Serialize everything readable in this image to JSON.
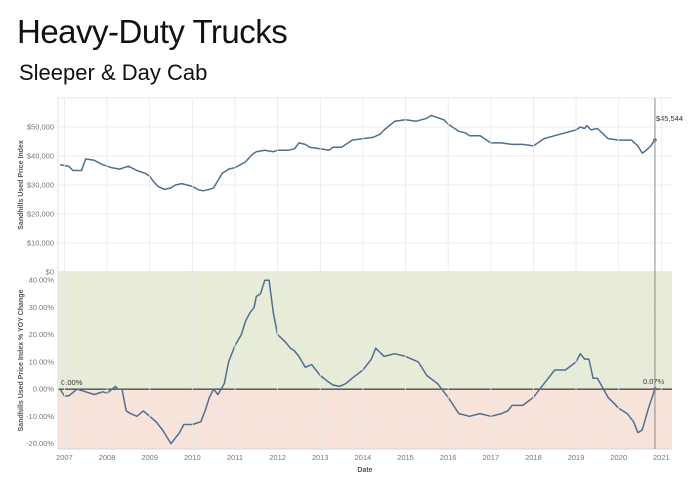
{
  "header": {
    "title": "Heavy-Duty Trucks",
    "subtitle": "Sleeper & Day Cab"
  },
  "colors": {
    "line": "#4e6f92",
    "positive_band": "#e7ecd9",
    "negative_band": "#f8e3db",
    "grid": "#e8e8e8",
    "zero_line": "#111111",
    "reference_line": "#888888"
  },
  "chart_data": [
    {
      "type": "line",
      "ylabel": "Sandhills Used Price Index",
      "xlabel": "",
      "ylim": [
        0,
        60000
      ],
      "yticks": [
        0,
        10000,
        20000,
        30000,
        40000,
        50000
      ],
      "ytick_labels": [
        "$0",
        "$10,000",
        "$20,000",
        "$30,000",
        "$40,000",
        "$50,000"
      ],
      "grid": true,
      "last_value_label": "$45,544",
      "x": [
        2006.9,
        2007.1,
        2007.2,
        2007.4,
        2007.5,
        2007.7,
        2007.9,
        2008.1,
        2008.3,
        2008.5,
        2008.7,
        2008.9,
        2009.0,
        2009.1,
        2009.2,
        2009.35,
        2009.5,
        2009.6,
        2009.75,
        2010.0,
        2010.15,
        2010.25,
        2010.4,
        2010.5,
        2010.6,
        2010.7,
        2010.85,
        2011.0,
        2011.25,
        2011.4,
        2011.5,
        2011.7,
        2011.9,
        2012.0,
        2012.25,
        2012.4,
        2012.5,
        2012.65,
        2012.75,
        2013.0,
        2013.2,
        2013.3,
        2013.5,
        2013.75,
        2014.0,
        2014.25,
        2014.4,
        2014.5,
        2014.75,
        2015.0,
        2015.25,
        2015.5,
        2015.6,
        2015.9,
        2016.0,
        2016.25,
        2016.4,
        2016.5,
        2016.75,
        2017.0,
        2017.25,
        2017.5,
        2017.75,
        2018.0,
        2018.25,
        2018.5,
        2018.75,
        2019.0,
        2019.1,
        2019.2,
        2019.25,
        2019.35,
        2019.5,
        2019.75,
        2020.0,
        2020.3,
        2020.45,
        2020.55,
        2020.65,
        2020.75,
        2020.85
      ],
      "y": [
        37000,
        36500,
        35000,
        35000,
        39000,
        38500,
        37000,
        36000,
        35500,
        36500,
        35000,
        34000,
        33000,
        31000,
        29500,
        28500,
        29000,
        30000,
        30500,
        29500,
        28300,
        28000,
        28500,
        29000,
        31500,
        34000,
        35500,
        36000,
        38000,
        40500,
        41500,
        42000,
        41500,
        42000,
        42000,
        42500,
        44500,
        44000,
        43000,
        42500,
        42000,
        43000,
        43000,
        45500,
        46000,
        46500,
        47500,
        49000,
        52000,
        52500,
        52000,
        53000,
        54000,
        52500,
        51000,
        48500,
        48000,
        47000,
        47000,
        44500,
        44500,
        44000,
        44000,
        43500,
        46000,
        47000,
        48000,
        49000,
        50000,
        49500,
        50500,
        49000,
        49500,
        46000,
        45500,
        45500,
        43500,
        41000,
        42000,
        43500,
        45544
      ]
    },
    {
      "type": "line",
      "ylabel": "Sandhills Used Price Index % YOY Change",
      "xlabel": "Date",
      "ylim": [
        -22,
        43
      ],
      "yticks": [
        -20,
        -10,
        0,
        10,
        20,
        30,
        40
      ],
      "ytick_labels": [
        "-20.00%",
        "-10.00%",
        "0.00%",
        "10.00%",
        "20.00%",
        "30.00%",
        "40.00%"
      ],
      "xticks": [
        "2007",
        "2008",
        "2009",
        "2010",
        "2011",
        "2012",
        "2013",
        "2014",
        "2015",
        "2016",
        "2017",
        "2018",
        "2019",
        "2020",
        "2021"
      ],
      "xlim": [
        2006.85,
        2021.25
      ],
      "grid": true,
      "first_value_label": "0.00%",
      "last_value_label": "0.07%",
      "reference_date": 2020.85,
      "x": [
        2006.9,
        2007.0,
        2007.1,
        2007.3,
        2007.5,
        2007.7,
        2007.9,
        2008.0,
        2008.2,
        2008.25,
        2008.35,
        2008.45,
        2008.55,
        2008.7,
        2008.85,
        2009.0,
        2009.15,
        2009.3,
        2009.5,
        2009.6,
        2009.7,
        2009.8,
        2010.0,
        2010.2,
        2010.3,
        2010.4,
        2010.5,
        2010.6,
        2010.75,
        2010.85,
        2011.0,
        2011.15,
        2011.25,
        2011.35,
        2011.45,
        2011.5,
        2011.6,
        2011.7,
        2011.8,
        2011.9,
        2012.0,
        2012.2,
        2012.3,
        2012.4,
        2012.5,
        2012.65,
        2012.8,
        2013.0,
        2013.2,
        2013.3,
        2013.45,
        2013.6,
        2013.75,
        2014.0,
        2014.2,
        2014.3,
        2014.5,
        2014.75,
        2015.0,
        2015.3,
        2015.5,
        2015.75,
        2016.0,
        2016.25,
        2016.5,
        2016.75,
        2017.0,
        2017.25,
        2017.4,
        2017.5,
        2017.75,
        2018.0,
        2018.25,
        2018.5,
        2018.75,
        2019.0,
        2019.1,
        2019.2,
        2019.3,
        2019.4,
        2019.5,
        2019.75,
        2020.0,
        2020.2,
        2020.35,
        2020.45,
        2020.55,
        2020.7,
        2020.85
      ],
      "y": [
        0,
        -2.5,
        -2.5,
        0,
        -1,
        -2,
        -1,
        -1.5,
        1,
        0,
        0,
        -8,
        -9,
        -10,
        -8,
        -10,
        -12,
        -15,
        -20,
        -18,
        -16,
        -13,
        -13,
        -12,
        -8,
        -3,
        0,
        -2,
        2,
        10,
        16,
        20,
        25,
        28,
        30,
        34,
        35,
        40,
        40,
        28,
        20,
        17,
        15,
        14,
        12,
        8,
        9,
        5,
        2.5,
        1.5,
        1,
        2,
        4,
        7,
        11,
        15,
        12,
        13,
        12,
        10,
        5,
        2,
        -3,
        -9,
        -10,
        -9,
        -10,
        -9,
        -8,
        -6,
        -6,
        -3,
        2,
        7,
        7,
        10,
        13,
        11,
        11,
        4,
        4,
        -3,
        -7,
        -9,
        -12,
        -16,
        -15,
        -7,
        0.07
      ]
    }
  ]
}
